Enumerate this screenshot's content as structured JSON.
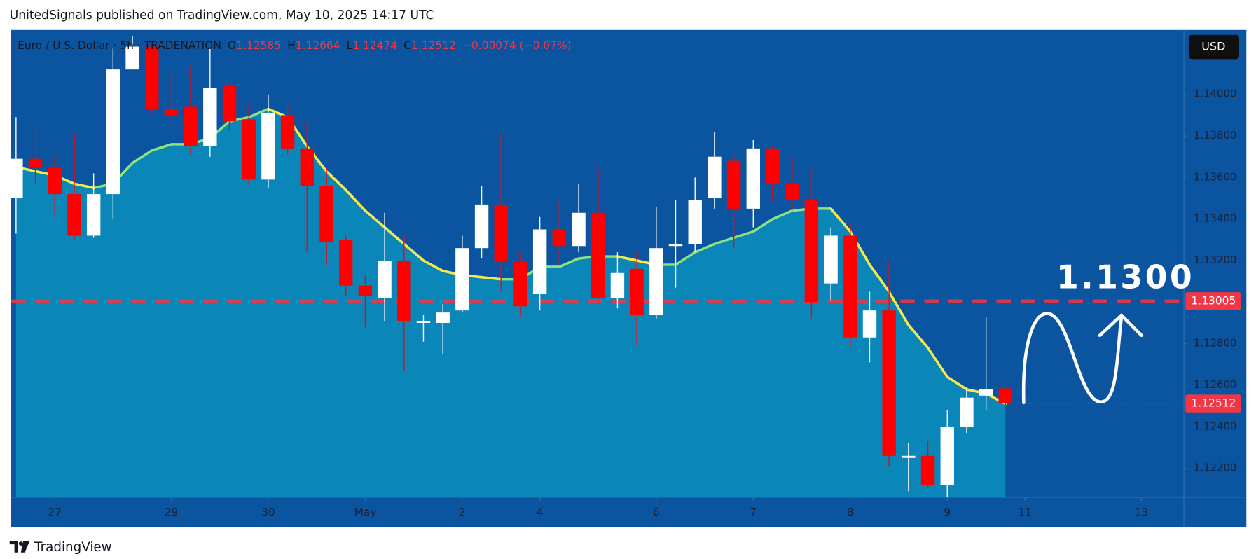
{
  "header": "UnitedSignals published on TradingView.com, May 10, 2025 14:17 UTC",
  "footer": "TradingView",
  "chart_data": {
    "type": "candlestick",
    "symbol": "Euro / U.S. Dollar · 5h · TRADENATION",
    "ohlc_legend": {
      "labels": [
        "O",
        "H",
        "L",
        "C"
      ],
      "values": [
        "1.12585",
        "1.12664",
        "1.12474",
        "1.12512"
      ],
      "change": "−0.00074 (−0.07%)"
    },
    "currency": "USD",
    "open": [
      1.135,
      1.1369,
      1.1365,
      1.1352,
      1.1332,
      1.1352,
      1.1412,
      1.1423,
      1.1393,
      1.1394,
      1.1375,
      1.1404,
      1.1388,
      1.1359,
      1.139,
      1.1374,
      1.1356,
      1.133,
      1.1308,
      1.1302,
      1.132,
      1.129,
      1.129,
      1.1296,
      1.1326,
      1.1347,
      1.132,
      1.1304,
      1.1335,
      1.1327,
      1.1343,
      1.1302,
      1.1316,
      1.1294,
      1.1327,
      1.1328,
      1.135,
      1.1368,
      1.1345,
      1.1374,
      1.1357,
      1.1349,
      1.1309,
      1.1332,
      1.1283,
      1.1296,
      1.1225,
      1.1226,
      1.1212,
      1.124,
      1.1255,
      1.12585
    ],
    "high": [
      1.1389,
      1.1383,
      1.1371,
      1.1381,
      1.1362,
      1.1422,
      1.1428,
      1.1426,
      1.141,
      1.1414,
      1.1422,
      1.1406,
      1.1395,
      1.14,
      1.1395,
      1.1387,
      1.1365,
      1.1332,
      1.1313,
      1.1343,
      1.1332,
      1.1294,
      1.1299,
      1.1332,
      1.1356,
      1.1381,
      1.1324,
      1.1341,
      1.1349,
      1.1357,
      1.1365,
      1.1324,
      1.1324,
      1.1346,
      1.1349,
      1.136,
      1.1382,
      1.1372,
      1.1378,
      1.1375,
      1.137,
      1.1365,
      1.1336,
      1.1338,
      1.1305,
      1.132,
      1.1232,
      1.1233,
      1.1248,
      1.1259,
      1.1293,
      1.12664
    ],
    "low": [
      1.1333,
      1.1357,
      1.1341,
      1.133,
      1.1331,
      1.134,
      1.1412,
      1.1391,
      1.1387,
      1.1371,
      1.137,
      1.1383,
      1.1356,
      1.1355,
      1.1371,
      1.1324,
      1.1318,
      1.1303,
      1.1288,
      1.1291,
      1.1267,
      1.1281,
      1.1275,
      1.1295,
      1.1321,
      1.1305,
      1.1293,
      1.1296,
      1.1318,
      1.1324,
      1.1299,
      1.1297,
      1.1279,
      1.1292,
      1.1307,
      1.1324,
      1.1345,
      1.1326,
      1.1336,
      1.1348,
      1.1344,
      1.1292,
      1.1301,
      1.1278,
      1.1271,
      1.1221,
      1.1209,
      1.1211,
      1.1206,
      1.1237,
      1.1248,
      1.12474
    ],
    "close": [
      1.1369,
      1.1365,
      1.1352,
      1.1332,
      1.1352,
      1.1412,
      1.1423,
      1.1393,
      1.139,
      1.1375,
      1.1403,
      1.1387,
      1.1359,
      1.1391,
      1.1374,
      1.1356,
      1.1329,
      1.1308,
      1.1303,
      1.132,
      1.1291,
      1.1291,
      1.1295,
      1.1326,
      1.1347,
      1.132,
      1.1298,
      1.1335,
      1.1327,
      1.1343,
      1.1302,
      1.1314,
      1.1294,
      1.1326,
      1.1328,
      1.1349,
      1.137,
      1.1345,
      1.1374,
      1.1357,
      1.1349,
      1.13,
      1.1332,
      1.1283,
      1.1296,
      1.1226,
      1.1226,
      1.1212,
      1.124,
      1.1254,
      1.1258,
      1.12512
    ],
    "up_color": "#ffffff",
    "down_color": "#ff0000",
    "moving_average": {
      "values": [
        1.1365,
        1.1363,
        1.1361,
        1.1357,
        1.1355,
        1.1357,
        1.1367,
        1.1373,
        1.1376,
        1.1376,
        1.1379,
        1.1387,
        1.1389,
        1.1393,
        1.1389,
        1.1375,
        1.1363,
        1.1354,
        1.1344,
        1.1336,
        1.1328,
        1.132,
        1.1315,
        1.1313,
        1.1312,
        1.1311,
        1.1311,
        1.1317,
        1.1317,
        1.1321,
        1.1322,
        1.1322,
        1.132,
        1.1318,
        1.1318,
        1.1324,
        1.1328,
        1.1331,
        1.1334,
        1.134,
        1.1344,
        1.1345,
        1.1345,
        1.1334,
        1.1318,
        1.1305,
        1.1289,
        1.1278,
        1.1264,
        1.1258,
        1.1256,
        1.1251
      ],
      "up_color": "#8fe27c",
      "down_color": "#f7e948",
      "fill": "#0a86b9"
    },
    "price_lines": [
      {
        "value": 1.13005,
        "label": "1.13005",
        "color": "#f23645"
      }
    ],
    "last_price": {
      "value": 1.12512,
      "label": "1.12512",
      "color": "#f23645"
    },
    "annotation": "1.1300",
    "xlim": [
      -0.5,
      59.5
    ],
    "xticks": [
      {
        "value": 2,
        "label": "27"
      },
      {
        "value": 8,
        "label": "29"
      },
      {
        "value": 13,
        "label": "30"
      },
      {
        "value": 18,
        "label": "May"
      },
      {
        "value": 23,
        "label": "2"
      },
      {
        "value": 27,
        "label": "4"
      },
      {
        "value": 33,
        "label": "6"
      },
      {
        "value": 38,
        "label": "7"
      },
      {
        "value": 43,
        "label": "8"
      },
      {
        "value": 48,
        "label": "9"
      },
      {
        "value": 52,
        "label": "11"
      },
      {
        "value": 58,
        "label": "13"
      }
    ],
    "ylim": [
      1.1206,
      1.1431
    ],
    "yticks": [
      {
        "value": 1.122,
        "label": "1.12200"
      },
      {
        "value": 1.124,
        "label": "1.12400"
      },
      {
        "value": 1.126,
        "label": "1.12600"
      },
      {
        "value": 1.128,
        "label": "1.12800"
      },
      {
        "value": 1.13,
        "label": "1.13000"
      },
      {
        "value": 1.132,
        "label": "1.13200"
      },
      {
        "value": 1.134,
        "label": "1.13400"
      },
      {
        "value": 1.136,
        "label": "1.13600"
      },
      {
        "value": 1.138,
        "label": "1.13800"
      },
      {
        "value": 1.14,
        "label": "1.14000"
      }
    ]
  }
}
